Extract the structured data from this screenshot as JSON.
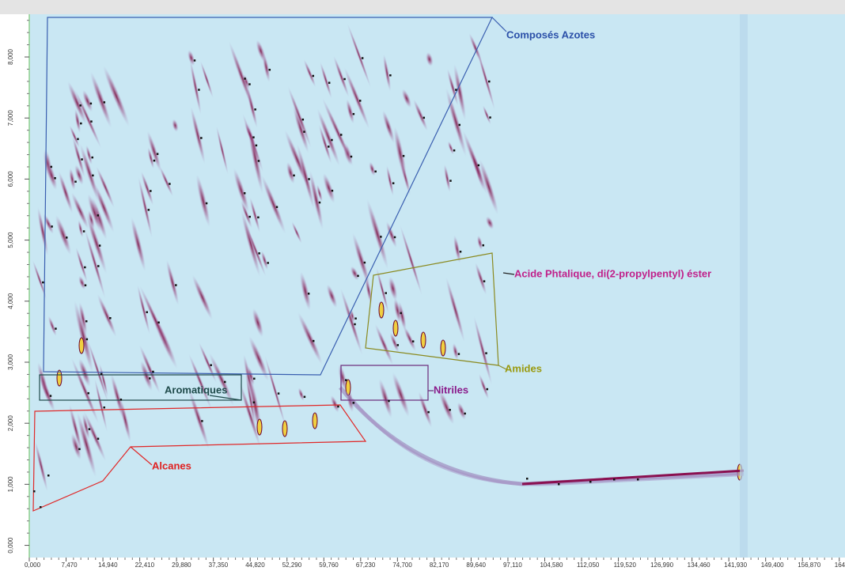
{
  "chart_data": {
    "type": "contour",
    "xlim": [
      0,
      165.5
    ],
    "ylim": [
      -0.2,
      8.7
    ],
    "xticks": [
      {
        "value": 0,
        "label": "0,000"
      },
      {
        "value": 7.47,
        "label": "7,470"
      },
      {
        "value": 14.94,
        "label": "14,940"
      },
      {
        "value": 22.41,
        "label": "22,410"
      },
      {
        "value": 29.88,
        "label": "29,880"
      },
      {
        "value": 37.35,
        "label": "37,350"
      },
      {
        "value": 44.82,
        "label": "44,820"
      },
      {
        "value": 52.29,
        "label": "52,290"
      },
      {
        "value": 59.76,
        "label": "59,760"
      },
      {
        "value": 67.23,
        "label": "67,230"
      },
      {
        "value": 74.7,
        "label": "74,700"
      },
      {
        "value": 82.17,
        "label": "82,170"
      },
      {
        "value": 89.64,
        "label": "89,640"
      },
      {
        "value": 97.11,
        "label": "97,110"
      },
      {
        "value": 104.58,
        "label": "104,580"
      },
      {
        "value": 112.05,
        "label": "112,050"
      },
      {
        "value": 119.52,
        "label": "119,520"
      },
      {
        "value": 126.99,
        "label": "126,990"
      },
      {
        "value": 134.46,
        "label": "134,460"
      },
      {
        "value": 141.93,
        "label": "141,930"
      },
      {
        "value": 149.4,
        "label": "149,400"
      },
      {
        "value": 156.87,
        "label": "156,870"
      },
      {
        "value": 164.34,
        "label": "164,3"
      }
    ],
    "yticks": [
      {
        "value": 0,
        "label": "0,000"
      },
      {
        "value": 1,
        "label": "1,000"
      },
      {
        "value": 2,
        "label": "2,000"
      },
      {
        "value": 3,
        "label": "3,000"
      },
      {
        "value": 4,
        "label": "4,000"
      },
      {
        "value": 5,
        "label": "5,000"
      },
      {
        "value": 6,
        "label": "6,000"
      },
      {
        "value": 7,
        "label": "7,000"
      },
      {
        "value": 8,
        "label": "8,000"
      }
    ],
    "annotations": [
      {
        "text": "Composés Azotes",
        "color": "#2a4fa8"
      },
      {
        "text": "Acide Phtalique, di(2-propylpentyl) éster",
        "color": "#c0208a"
      },
      {
        "text": "Amides",
        "color": "#9a9a10"
      },
      {
        "text": "Nitriles",
        "color": "#8a1a8a"
      },
      {
        "text": "Aromatiques",
        "color": "#1e4a4a"
      },
      {
        "text": "Alcanes",
        "color": "#e02020"
      }
    ]
  }
}
